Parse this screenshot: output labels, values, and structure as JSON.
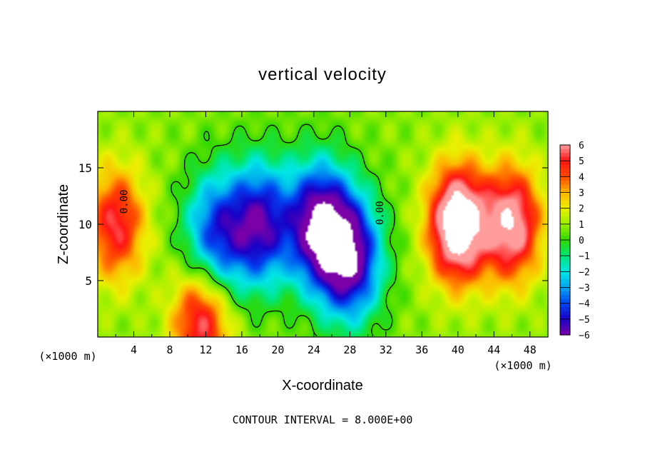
{
  "chart_data": {
    "type": "heatmap",
    "title": "vertical velocity",
    "xlabel": "X-coordinate",
    "ylabel": "Z-coordinate",
    "x_unit_left": "(×1000 m)",
    "x_unit_right": "(×1000 m)",
    "footer": "CONTOUR INTERVAL = 8.000E+00",
    "xlim": [
      0,
      50
    ],
    "ylim": [
      0,
      20
    ],
    "x_ticks": [
      4,
      8,
      12,
      16,
      20,
      24,
      28,
      32,
      36,
      40,
      44,
      48
    ],
    "y_ticks": [
      5,
      10,
      15
    ],
    "contour_labels": [
      {
        "text": "0.00",
        "x": 3.3,
        "z": 12
      },
      {
        "text": "0.00",
        "x": 31.7,
        "z": 11
      }
    ],
    "colorbar": {
      "min": -6,
      "max": 6,
      "ticks": [
        6,
        5,
        4,
        3,
        2,
        1,
        0,
        -1,
        -2,
        -3,
        -4,
        -5,
        -6
      ],
      "colors": [
        "#7a00a8",
        "#1a00c8",
        "#0045f0",
        "#00a6f0",
        "#00e6e6",
        "#00e676",
        "#30d800",
        "#9cf000",
        "#eaf000",
        "#ffb400",
        "#ff4a00",
        "#ff1414",
        "#ff9c9c"
      ]
    },
    "features": [
      {
        "kind": "updraft",
        "x": 2,
        "z": 10,
        "peak": 4.5
      },
      {
        "kind": "downdraft",
        "x": 13,
        "z": 9,
        "peak": -5
      },
      {
        "kind": "downdraft",
        "x": 18,
        "z": 10,
        "peak": -6
      },
      {
        "kind": "downdraft",
        "x": 24.5,
        "z": 10,
        "peak": -7
      },
      {
        "kind": "downdraft",
        "x": 28,
        "z": 7,
        "peak": -7
      },
      {
        "kind": "updraft",
        "x": 11.5,
        "z": 1.5,
        "peak": 5
      },
      {
        "kind": "updraft",
        "x": 40,
        "z": 10,
        "peak": 8
      },
      {
        "kind": "updraft",
        "x": 46,
        "z": 10,
        "peak": 6
      }
    ]
  }
}
